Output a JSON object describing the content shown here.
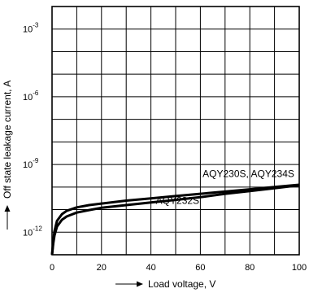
{
  "chart_data": {
    "type": "line",
    "title": "",
    "xlabel": "Load voltage, V",
    "ylabel": "Off state leakage current, A",
    "xlim": [
      0,
      100
    ],
    "ylim_log10": [
      -13,
      -2
    ],
    "y_scale": "log",
    "grid": true,
    "x_ticks": [
      0,
      20,
      40,
      60,
      80,
      100
    ],
    "x_tick_labels": [
      "0",
      "20",
      "40",
      "60",
      "80",
      "100"
    ],
    "y_ticks": [
      {
        "exp": -12,
        "label_base": "10",
        "label_exp": "-12"
      },
      {
        "exp": -9,
        "label_base": "10",
        "label_exp": "-9"
      },
      {
        "exp": -6,
        "label_base": "10",
        "label_exp": "-6"
      },
      {
        "exp": -3,
        "label_base": "10",
        "label_exp": "-3"
      }
    ],
    "series": [
      {
        "name": "AQY230S, AQY234S",
        "x": [
          0,
          0.5,
          1,
          2,
          4,
          6,
          10,
          15,
          20,
          30,
          40,
          50,
          60,
          70,
          80,
          90,
          100
        ],
        "log10_y": [
          -13.0,
          -12.4,
          -11.95,
          -11.5,
          -11.2,
          -11.05,
          -10.9,
          -10.8,
          -10.73,
          -10.6,
          -10.5,
          -10.4,
          -10.3,
          -10.2,
          -10.1,
          -10.0,
          -9.9
        ]
      },
      {
        "name": "AQY232S",
        "x": [
          0,
          0.5,
          1,
          2,
          4,
          6,
          10,
          15,
          20,
          30,
          40,
          50,
          60,
          70,
          80,
          90,
          100
        ],
        "log10_y": [
          -13.0,
          -12.5,
          -12.15,
          -11.75,
          -11.45,
          -11.3,
          -11.13,
          -11.02,
          -10.92,
          -10.8,
          -10.68,
          -10.57,
          -10.45,
          -10.3,
          -10.18,
          -10.05,
          -9.92
        ]
      }
    ]
  }
}
